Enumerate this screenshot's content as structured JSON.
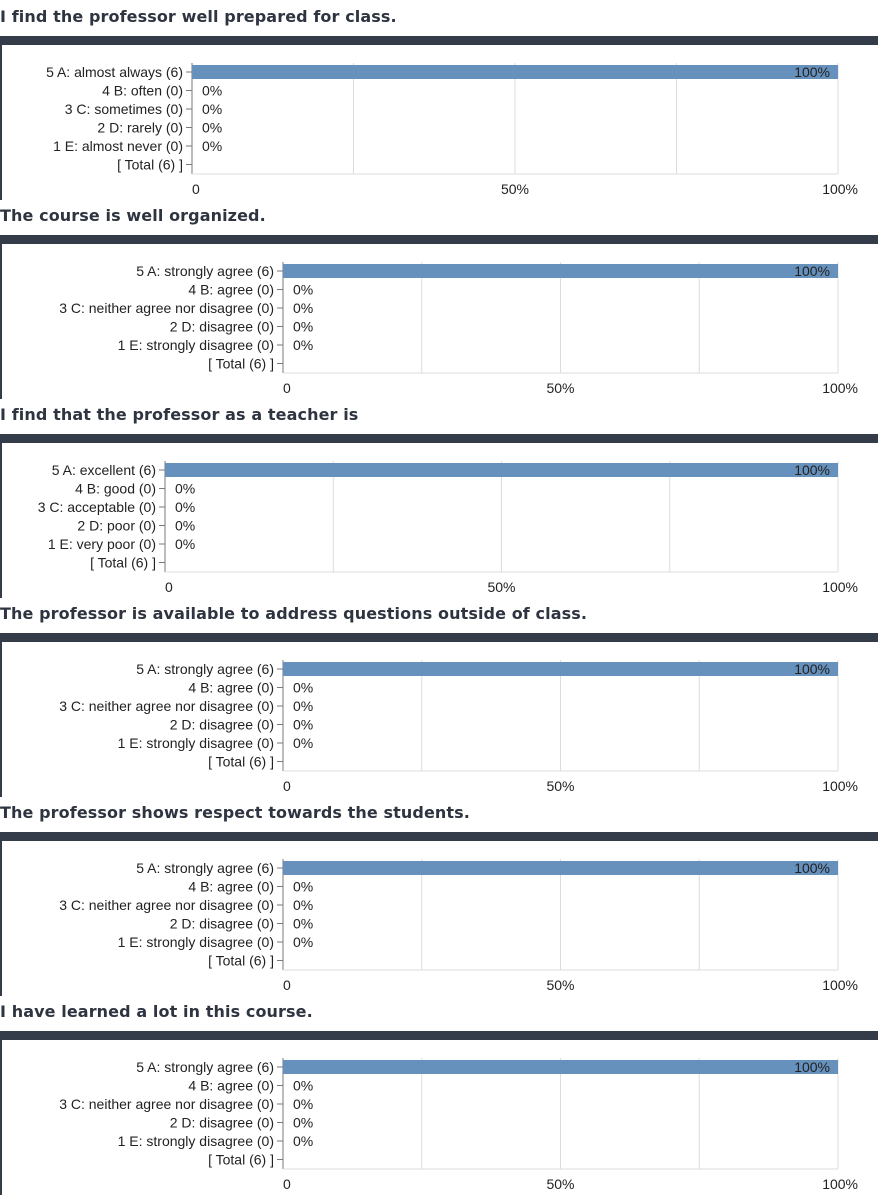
{
  "colors": {
    "bar": "#6791bd",
    "header_band": "#343c4a",
    "grid": "#dcdcdc",
    "axis": "#7a7a7a",
    "text": "#222222"
  },
  "charts": [
    {
      "question": "I find the professor well prepared for class.",
      "chart_data": {
        "type": "bar",
        "orientation": "horizontal",
        "categories": [
          "5 A: almost always (6)",
          "4 B: often (0)",
          "3 C: sometimes (0)",
          "2 D: rarely (0)",
          "1 E: almost never (0)",
          "[ Total (6) ]"
        ],
        "values": [
          100,
          0,
          0,
          0,
          0,
          null
        ],
        "data_labels": [
          "100%",
          "0%",
          "0%",
          "0%",
          "0%",
          ""
        ],
        "xlim": [
          0,
          100
        ],
        "xticks": [
          0,
          50,
          100
        ],
        "xtick_labels": [
          "0",
          "50%",
          "100%"
        ],
        "grid": true
      }
    },
    {
      "question": "The course is well organized.",
      "chart_data": {
        "type": "bar",
        "orientation": "horizontal",
        "categories": [
          "5 A: strongly agree (6)",
          "4 B: agree (0)",
          "3 C: neither agree nor disagree (0)",
          "2 D: disagree (0)",
          "1 E: strongly disagree (0)",
          "[ Total (6) ]"
        ],
        "values": [
          100,
          0,
          0,
          0,
          0,
          null
        ],
        "data_labels": [
          "100%",
          "0%",
          "0%",
          "0%",
          "0%",
          ""
        ],
        "xlim": [
          0,
          100
        ],
        "xticks": [
          0,
          50,
          100
        ],
        "xtick_labels": [
          "0",
          "50%",
          "100%"
        ],
        "grid": true
      }
    },
    {
      "question": "I find that the professor as a teacher is",
      "chart_data": {
        "type": "bar",
        "orientation": "horizontal",
        "categories": [
          "5 A: excellent (6)",
          "4 B: good (0)",
          "3 C: acceptable (0)",
          "2 D: poor (0)",
          "1 E: very poor (0)",
          "[ Total (6) ]"
        ],
        "values": [
          100,
          0,
          0,
          0,
          0,
          null
        ],
        "data_labels": [
          "100%",
          "0%",
          "0%",
          "0%",
          "0%",
          ""
        ],
        "xlim": [
          0,
          100
        ],
        "xticks": [
          0,
          50,
          100
        ],
        "xtick_labels": [
          "0",
          "50%",
          "100%"
        ],
        "grid": true
      }
    },
    {
      "question": "The professor is available to address questions outside of class.",
      "chart_data": {
        "type": "bar",
        "orientation": "horizontal",
        "categories": [
          "5 A: strongly agree (6)",
          "4 B: agree (0)",
          "3 C: neither agree nor disagree (0)",
          "2 D: disagree (0)",
          "1 E: strongly disagree (0)",
          "[ Total (6) ]"
        ],
        "values": [
          100,
          0,
          0,
          0,
          0,
          null
        ],
        "data_labels": [
          "100%",
          "0%",
          "0%",
          "0%",
          "0%",
          ""
        ],
        "xlim": [
          0,
          100
        ],
        "xticks": [
          0,
          50,
          100
        ],
        "xtick_labels": [
          "0",
          "50%",
          "100%"
        ],
        "grid": true
      }
    },
    {
      "question": "The professor shows respect towards the students.",
      "chart_data": {
        "type": "bar",
        "orientation": "horizontal",
        "categories": [
          "5 A: strongly agree (6)",
          "4 B: agree (0)",
          "3 C: neither agree nor disagree (0)",
          "2 D: disagree (0)",
          "1 E: strongly disagree (0)",
          "[ Total (6) ]"
        ],
        "values": [
          100,
          0,
          0,
          0,
          0,
          null
        ],
        "data_labels": [
          "100%",
          "0%",
          "0%",
          "0%",
          "0%",
          ""
        ],
        "xlim": [
          0,
          100
        ],
        "xticks": [
          0,
          50,
          100
        ],
        "xtick_labels": [
          "0",
          "50%",
          "100%"
        ],
        "grid": true
      }
    },
    {
      "question": "I have learned a lot in this course.",
      "chart_data": {
        "type": "bar",
        "orientation": "horizontal",
        "categories": [
          "5 A: strongly agree (6)",
          "4 B: agree (0)",
          "3 C: neither agree nor disagree (0)",
          "2 D: disagree (0)",
          "1 E: strongly disagree (0)",
          "[ Total (6) ]"
        ],
        "values": [
          100,
          0,
          0,
          0,
          0,
          null
        ],
        "data_labels": [
          "100%",
          "0%",
          "0%",
          "0%",
          "0%",
          ""
        ],
        "xlim": [
          0,
          100
        ],
        "xticks": [
          0,
          50,
          100
        ],
        "xtick_labels": [
          "0",
          "50%",
          "100%"
        ],
        "grid": true
      }
    }
  ]
}
